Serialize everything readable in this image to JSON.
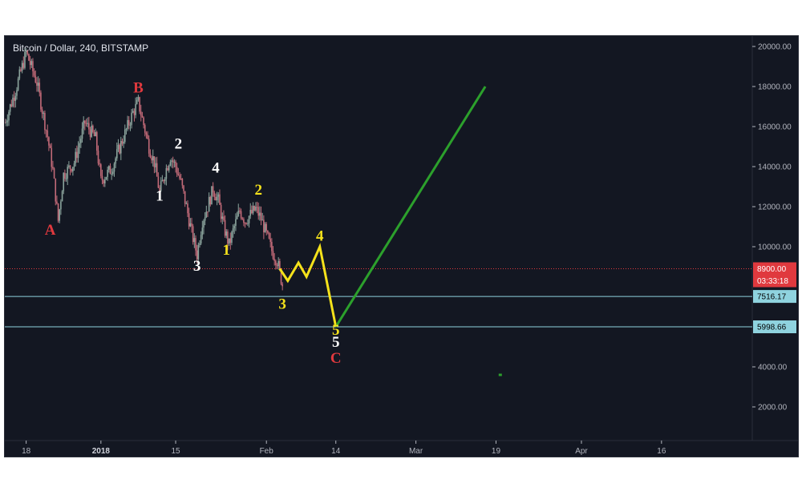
{
  "chart_data": {
    "type": "candlestick",
    "title": "Bitcoin / Dollar, 240, BITSTAMP",
    "y_axis": {
      "ticks": [
        "20000.00",
        "18000.00",
        "16000.00",
        "14000.00",
        "12000.00",
        "10000.00",
        "4000.00",
        "2000.00"
      ],
      "tick_values": [
        20000,
        18000,
        16000,
        14000,
        12000,
        10000,
        4000,
        2000
      ],
      "range": [
        0,
        21000
      ]
    },
    "x_axis": {
      "ticks": [
        "18",
        "2018",
        "15",
        "Feb",
        "14",
        "Mar",
        "19",
        "Apr",
        "16"
      ],
      "tick_days": [
        0,
        14,
        28,
        45,
        58,
        73,
        88,
        104,
        119
      ],
      "bold_ticks": [
        "2018"
      ],
      "range": [
        -4,
        136
      ]
    },
    "price_tags": [
      {
        "label": "8900.00",
        "value": 8900,
        "color": "#e0393e",
        "text_color": "#ffffff",
        "line": "dotted"
      },
      {
        "label": "03:33:18",
        "value": 8300,
        "color": "#e0393e",
        "text_color": "#ffffff"
      },
      {
        "label": "7516.17",
        "value": 7516,
        "color": "#8fd3df",
        "text_color": "#000000",
        "line": "solid"
      },
      {
        "label": "5998.66",
        "value": 5999,
        "color": "#8fd3df",
        "text_color": "#000000",
        "line": "solid"
      }
    ],
    "price_path": [
      [
        -4,
        16200
      ],
      [
        -2,
        17800
      ],
      [
        0,
        19700
      ],
      [
        2,
        18200
      ],
      [
        4,
        15500
      ],
      [
        5,
        13800
      ],
      [
        6,
        11300
      ],
      [
        7,
        13600
      ],
      [
        9,
        14200
      ],
      [
        11,
        16200
      ],
      [
        13,
        15400
      ],
      [
        14,
        13300
      ],
      [
        16,
        13900
      ],
      [
        18,
        15300
      ],
      [
        20,
        16700
      ],
      [
        21,
        17200
      ],
      [
        22,
        16100
      ],
      [
        23,
        15000
      ],
      [
        24,
        14200
      ],
      [
        25,
        12700
      ],
      [
        26,
        13700
      ],
      [
        27,
        14500
      ],
      [
        28,
        14000
      ],
      [
        29,
        13200
      ],
      [
        30,
        12000
      ],
      [
        31,
        10700
      ],
      [
        32,
        9600
      ],
      [
        33,
        11300
      ],
      [
        34,
        12000
      ],
      [
        35,
        12900
      ],
      [
        36,
        12300
      ],
      [
        37,
        11000
      ],
      [
        38,
        10100
      ],
      [
        39,
        11000
      ],
      [
        40,
        11800
      ],
      [
        41,
        11300
      ],
      [
        42,
        11600
      ],
      [
        43,
        11900
      ],
      [
        44,
        11400
      ],
      [
        45,
        10600
      ],
      [
        46,
        9800
      ],
      [
        47,
        9300
      ],
      [
        48,
        8100
      ]
    ],
    "projections": [
      {
        "color": "#f5e21b",
        "points": [
          [
            47.5,
            8900
          ],
          [
            49,
            8300
          ],
          [
            51,
            9200
          ],
          [
            52.5,
            8500
          ],
          [
            55,
            10000
          ],
          [
            58,
            6000
          ]
        ]
      },
      {
        "color": "#2ca02c",
        "points": [
          [
            58,
            6000
          ],
          [
            86,
            18000
          ]
        ]
      }
    ],
    "wave_labels": [
      {
        "text": "A",
        "x": 4.5,
        "y": 10600,
        "color": "#e0393e"
      },
      {
        "text": "B",
        "x": 21,
        "y": 17700,
        "color": "#e0393e"
      },
      {
        "text": "C",
        "x": 58,
        "y": 4200,
        "color": "#e0393e"
      },
      {
        "text": "1",
        "x": 25,
        "y": 12300,
        "color": "#ffffff"
      },
      {
        "text": "2",
        "x": 28.5,
        "y": 14900,
        "color": "#ffffff"
      },
      {
        "text": "3",
        "x": 32,
        "y": 8800,
        "color": "#ffffff"
      },
      {
        "text": "4",
        "x": 35.5,
        "y": 13700,
        "color": "#ffffff"
      },
      {
        "text": "5",
        "x": 58,
        "y": 5000,
        "color": "#ffffff"
      },
      {
        "text": "1",
        "x": 37.5,
        "y": 9600,
        "color": "#f5e21b"
      },
      {
        "text": "2",
        "x": 43.5,
        "y": 12600,
        "color": "#f5e21b"
      },
      {
        "text": "3",
        "x": 48,
        "y": 6900,
        "color": "#f5e21b"
      },
      {
        "text": "4",
        "x": 55,
        "y": 10300,
        "color": "#f5e21b"
      },
      {
        "text": "5",
        "x": 58,
        "y": 5600,
        "color": "#f5e21b"
      }
    ],
    "colors": {
      "background": "#131722",
      "candle_up": "#8aa39c",
      "candle_down": "#c26a78",
      "axis_text": "#b2b5be"
    },
    "grid": false
  }
}
